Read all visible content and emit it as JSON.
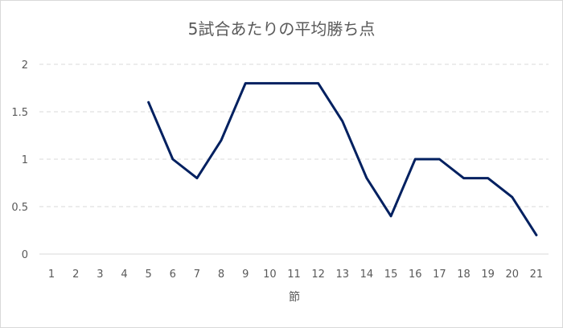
{
  "chart_data": {
    "type": "line",
    "title": "5試合あたりの平均勝ち点",
    "xlabel": "節",
    "ylabel": "",
    "categories": [
      "1",
      "2",
      "3",
      "4",
      "5",
      "6",
      "7",
      "8",
      "9",
      "10",
      "11",
      "12",
      "13",
      "14",
      "15",
      "16",
      "17",
      "18",
      "19",
      "20",
      "21"
    ],
    "series": [
      {
        "values": [
          null,
          null,
          null,
          null,
          1.6,
          1.0,
          0.8,
          1.2,
          1.8,
          1.8,
          1.8,
          1.8,
          1.4,
          0.8,
          0.4,
          1.0,
          1.0,
          0.8,
          0.8,
          0.6,
          0.2
        ],
        "color": "#002060"
      }
    ],
    "ylim": [
      0,
      2
    ],
    "yticks": [
      "0",
      "0.5",
      "1",
      "1.5",
      "2"
    ],
    "grid": true,
    "gridline_color": "#d9d9d9",
    "text_color": "#595959"
  }
}
